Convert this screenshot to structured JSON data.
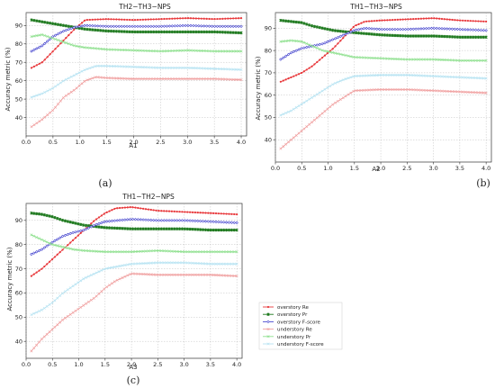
{
  "figure": {
    "captions": [
      "(a)",
      "(b)",
      "(c)"
    ]
  },
  "legend": {
    "placement": "right-of-panel-c",
    "entries": [
      {
        "label": "overstory Re",
        "color": "#e8383b",
        "marker": "circle"
      },
      {
        "label": "overstory Pr",
        "color": "#1f7a1f",
        "marker": "star"
      },
      {
        "label": "overstory F-score",
        "color": "#4a4ad0",
        "marker": "diamond"
      },
      {
        "label": "understory Re",
        "color": "#f0a0a0",
        "marker": "x"
      },
      {
        "label": "understory Pr",
        "color": "#8fe08f",
        "marker": "x"
      },
      {
        "label": "understory F-score",
        "color": "#b7e3f2",
        "marker": "x"
      }
    ]
  },
  "chart_data": [
    {
      "type": "line",
      "title": "TH2−TH3−NPS",
      "xlabel": "A1",
      "ylabel": "Accuracy metric (%)",
      "xlim": [
        0,
        4.1
      ],
      "ylim": [
        30,
        97
      ],
      "xticks": [
        "0.0",
        "0.5",
        "1.0",
        "1.5",
        "2.0",
        "2.5",
        "3.0",
        "3.5",
        "4.0"
      ],
      "yticks": [
        "40",
        "50",
        "60",
        "70",
        "80",
        "90"
      ],
      "grid": true,
      "series": [
        {
          "name": "overstory Re",
          "points": [
            [
              0.1,
              67
            ],
            [
              0.3,
              70
            ],
            [
              0.5,
              76
            ],
            [
              0.7,
              82
            ],
            [
              0.9,
              88
            ],
            [
              1.1,
              93
            ],
            [
              1.5,
              93.5
            ],
            [
              2.0,
              93
            ],
            [
              2.5,
              93.5
            ],
            [
              3.0,
              94
            ],
            [
              3.5,
              93.5
            ],
            [
              4.0,
              94
            ]
          ]
        },
        {
          "name": "overstory Pr",
          "points": [
            [
              0.1,
              93
            ],
            [
              0.3,
              92
            ],
            [
              0.5,
              91
            ],
            [
              0.7,
              90
            ],
            [
              0.9,
              89
            ],
            [
              1.1,
              88
            ],
            [
              1.5,
              87
            ],
            [
              2.0,
              86.5
            ],
            [
              2.5,
              86.5
            ],
            [
              3.0,
              86.5
            ],
            [
              3.5,
              86.5
            ],
            [
              4.0,
              86
            ]
          ]
        },
        {
          "name": "overstory F-score",
          "points": [
            [
              0.1,
              76
            ],
            [
              0.3,
              79
            ],
            [
              0.5,
              84
            ],
            [
              0.7,
              87
            ],
            [
              0.9,
              89
            ],
            [
              1.1,
              90
            ],
            [
              1.5,
              89.5
            ],
            [
              2.0,
              89.5
            ],
            [
              2.5,
              89.5
            ],
            [
              3.0,
              90
            ],
            [
              3.5,
              89.5
            ],
            [
              4.0,
              89.5
            ]
          ]
        },
        {
          "name": "understory Re",
          "points": [
            [
              0.1,
              35
            ],
            [
              0.3,
              39
            ],
            [
              0.5,
              44
            ],
            [
              0.7,
              51
            ],
            [
              0.9,
              55
            ],
            [
              1.1,
              60
            ],
            [
              1.3,
              62
            ],
            [
              1.5,
              61.5
            ],
            [
              2.0,
              61
            ],
            [
              2.5,
              61
            ],
            [
              3.0,
              61
            ],
            [
              3.5,
              61
            ],
            [
              4.0,
              60.5
            ]
          ]
        },
        {
          "name": "understory Pr",
          "points": [
            [
              0.1,
              84
            ],
            [
              0.3,
              85
            ],
            [
              0.5,
              83
            ],
            [
              0.7,
              81
            ],
            [
              0.9,
              79
            ],
            [
              1.1,
              78
            ],
            [
              1.5,
              77
            ],
            [
              2.0,
              76.5
            ],
            [
              2.5,
              76
            ],
            [
              3.0,
              76.5
            ],
            [
              3.5,
              76
            ],
            [
              4.0,
              76
            ]
          ]
        },
        {
          "name": "understory F-score",
          "points": [
            [
              0.1,
              51
            ],
            [
              0.3,
              53
            ],
            [
              0.5,
              56
            ],
            [
              0.7,
              60
            ],
            [
              0.9,
              63
            ],
            [
              1.1,
              66
            ],
            [
              1.3,
              68
            ],
            [
              1.5,
              68
            ],
            [
              2.0,
              67.5
            ],
            [
              2.5,
              67
            ],
            [
              3.0,
              67
            ],
            [
              3.5,
              66.5
            ],
            [
              4.0,
              66
            ]
          ]
        }
      ]
    },
    {
      "type": "line",
      "title": "TH1−TH3−NPS",
      "xlabel": "A2",
      "ylabel": "Accuracy metric (%)",
      "xlim": [
        0,
        4.1
      ],
      "ylim": [
        30,
        97
      ],
      "xticks": [
        "0.0",
        "0.5",
        "1.0",
        "1.5",
        "2.0",
        "2.5",
        "3.0",
        "3.5",
        "4.0"
      ],
      "yticks": [
        "40",
        "50",
        "60",
        "70",
        "80",
        "90"
      ],
      "grid": true,
      "series": [
        {
          "name": "overstory Re",
          "points": [
            [
              0.1,
              66
            ],
            [
              0.3,
              68
            ],
            [
              0.5,
              70
            ],
            [
              0.7,
              73
            ],
            [
              0.9,
              77
            ],
            [
              1.1,
              81
            ],
            [
              1.3,
              86
            ],
            [
              1.5,
              91
            ],
            [
              1.7,
              93
            ],
            [
              2.0,
              93.5
            ],
            [
              2.5,
              94
            ],
            [
              3.0,
              94.5
            ],
            [
              3.5,
              93.5
            ],
            [
              4.0,
              93
            ]
          ]
        },
        {
          "name": "overstory Pr",
          "points": [
            [
              0.1,
              93.5
            ],
            [
              0.3,
              93
            ],
            [
              0.5,
              92.5
            ],
            [
              0.7,
              91
            ],
            [
              0.9,
              90
            ],
            [
              1.1,
              89
            ],
            [
              1.5,
              88
            ],
            [
              2.0,
              87
            ],
            [
              2.5,
              86.5
            ],
            [
              3.0,
              86.5
            ],
            [
              3.5,
              86
            ],
            [
              4.0,
              86
            ]
          ]
        },
        {
          "name": "overstory F-score",
          "points": [
            [
              0.1,
              76
            ],
            [
              0.3,
              79
            ],
            [
              0.5,
              81
            ],
            [
              0.7,
              82
            ],
            [
              0.9,
              83
            ],
            [
              1.1,
              85
            ],
            [
              1.3,
              87
            ],
            [
              1.5,
              89
            ],
            [
              1.7,
              90
            ],
            [
              2.0,
              89.5
            ],
            [
              2.5,
              89.5
            ],
            [
              3.0,
              90
            ],
            [
              3.5,
              89.5
            ],
            [
              4.0,
              89
            ]
          ]
        },
        {
          "name": "understory Re",
          "points": [
            [
              0.1,
              36
            ],
            [
              0.3,
              40
            ],
            [
              0.5,
              44
            ],
            [
              0.7,
              48
            ],
            [
              0.9,
              52
            ],
            [
              1.1,
              56
            ],
            [
              1.3,
              59
            ],
            [
              1.5,
              62
            ],
            [
              2.0,
              62.5
            ],
            [
              2.5,
              62.5
            ],
            [
              3.0,
              62
            ],
            [
              3.5,
              61.5
            ],
            [
              4.0,
              61
            ]
          ]
        },
        {
          "name": "understory Pr",
          "points": [
            [
              0.1,
              84
            ],
            [
              0.3,
              84.5
            ],
            [
              0.5,
              84
            ],
            [
              0.7,
              82
            ],
            [
              0.9,
              80
            ],
            [
              1.1,
              79
            ],
            [
              1.5,
              77
            ],
            [
              2.0,
              76.5
            ],
            [
              2.5,
              76
            ],
            [
              3.0,
              76
            ],
            [
              3.5,
              75.5
            ],
            [
              4.0,
              75.5
            ]
          ]
        },
        {
          "name": "understory F-score",
          "points": [
            [
              0.1,
              51
            ],
            [
              0.3,
              53
            ],
            [
              0.5,
              56
            ],
            [
              0.7,
              59
            ],
            [
              0.9,
              62
            ],
            [
              1.1,
              65
            ],
            [
              1.3,
              67
            ],
            [
              1.5,
              68.5
            ],
            [
              2.0,
              69
            ],
            [
              2.5,
              69
            ],
            [
              3.0,
              68.5
            ],
            [
              3.5,
              68
            ],
            [
              4.0,
              67.5
            ]
          ]
        }
      ]
    },
    {
      "type": "line",
      "title": "TH1−TH2−NPS",
      "xlabel": "A3",
      "ylabel": "Accuracy metric (%)",
      "xlim": [
        0,
        4.1
      ],
      "ylim": [
        33,
        97
      ],
      "xticks": [
        "0.0",
        "0.5",
        "1.0",
        "1.5",
        "2.0",
        "2.5",
        "3.0",
        "3.5",
        "4.0"
      ],
      "yticks": [
        "40",
        "50",
        "60",
        "70",
        "80",
        "90"
      ],
      "grid": true,
      "series": [
        {
          "name": "overstory Re",
          "points": [
            [
              0.1,
              67
            ],
            [
              0.3,
              70
            ],
            [
              0.5,
              74
            ],
            [
              0.7,
              78
            ],
            [
              0.9,
              82
            ],
            [
              1.1,
              86
            ],
            [
              1.3,
              90
            ],
            [
              1.5,
              93
            ],
            [
              1.7,
              95
            ],
            [
              2.0,
              95.5
            ],
            [
              2.5,
              94
            ],
            [
              3.0,
              93.5
            ],
            [
              3.5,
              93
            ],
            [
              4.0,
              92.5
            ]
          ]
        },
        {
          "name": "overstory Pr",
          "points": [
            [
              0.1,
              93
            ],
            [
              0.3,
              92.5
            ],
            [
              0.5,
              91.5
            ],
            [
              0.7,
              90
            ],
            [
              0.9,
              89
            ],
            [
              1.1,
              88
            ],
            [
              1.5,
              87
            ],
            [
              2.0,
              86.5
            ],
            [
              2.5,
              86.5
            ],
            [
              3.0,
              86.5
            ],
            [
              3.5,
              86
            ],
            [
              4.0,
              86
            ]
          ]
        },
        {
          "name": "overstory F-score",
          "points": [
            [
              0.1,
              76
            ],
            [
              0.3,
              78
            ],
            [
              0.5,
              81
            ],
            [
              0.7,
              83.5
            ],
            [
              0.9,
              85
            ],
            [
              1.1,
              86
            ],
            [
              1.3,
              88
            ],
            [
              1.5,
              89.5
            ],
            [
              2.0,
              90.5
            ],
            [
              2.5,
              90
            ],
            [
              3.0,
              90
            ],
            [
              3.5,
              89.5
            ],
            [
              4.0,
              89
            ]
          ]
        },
        {
          "name": "understory Re",
          "points": [
            [
              0.1,
              36
            ],
            [
              0.3,
              41
            ],
            [
              0.5,
              45
            ],
            [
              0.7,
              49
            ],
            [
              0.9,
              52
            ],
            [
              1.1,
              55
            ],
            [
              1.3,
              58
            ],
            [
              1.5,
              62
            ],
            [
              1.7,
              65
            ],
            [
              2.0,
              68
            ],
            [
              2.5,
              67.5
            ],
            [
              3.0,
              67.5
            ],
            [
              3.5,
              67.5
            ],
            [
              4.0,
              67
            ]
          ]
        },
        {
          "name": "understory Pr",
          "points": [
            [
              0.1,
              84
            ],
            [
              0.3,
              82
            ],
            [
              0.5,
              80
            ],
            [
              0.7,
              79
            ],
            [
              0.9,
              78
            ],
            [
              1.1,
              77.5
            ],
            [
              1.5,
              77
            ],
            [
              2.0,
              77
            ],
            [
              2.5,
              77.5
            ],
            [
              3.0,
              77
            ],
            [
              3.5,
              77
            ],
            [
              4.0,
              77
            ]
          ]
        },
        {
          "name": "understory F-score",
          "points": [
            [
              0.1,
              51
            ],
            [
              0.3,
              53
            ],
            [
              0.5,
              56
            ],
            [
              0.7,
              60
            ],
            [
              0.9,
              63
            ],
            [
              1.1,
              66
            ],
            [
              1.3,
              68
            ],
            [
              1.5,
              70
            ],
            [
              2.0,
              72
            ],
            [
              2.5,
              72.5
            ],
            [
              3.0,
              72.5
            ],
            [
              3.5,
              72
            ],
            [
              4.0,
              72
            ]
          ]
        }
      ]
    }
  ]
}
